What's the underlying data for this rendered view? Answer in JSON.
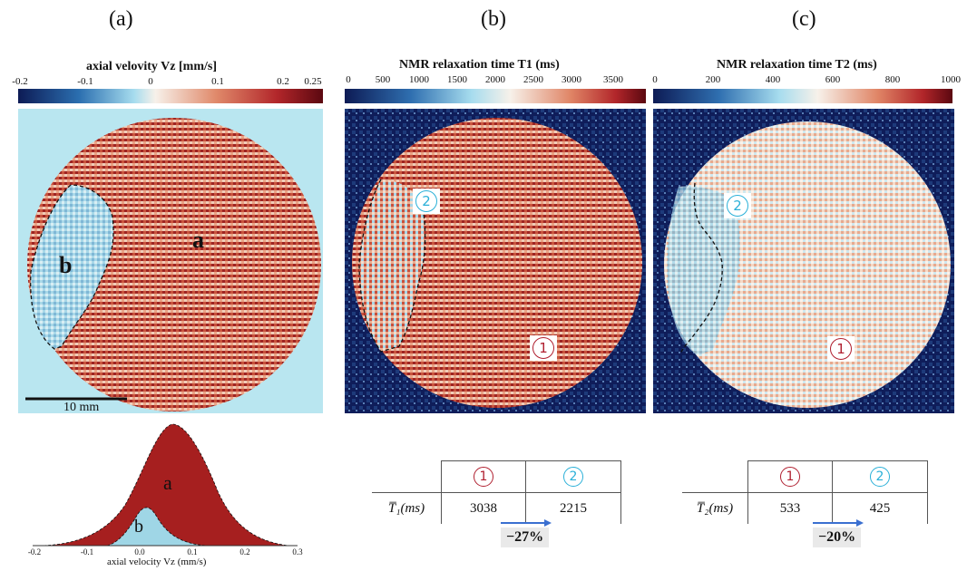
{
  "panels": {
    "a": {
      "label": "(a)",
      "colorbar_title": "axial velovity Vz [mm/s]",
      "colorbar_ticks": [
        "-0.2",
        "-0.1",
        "0",
        "0.1",
        "0.2",
        "0.25"
      ],
      "region_a": "a",
      "region_b": "b",
      "scale_bar": "10 mm"
    },
    "b": {
      "label": "(b)",
      "colorbar_title": "NMR relaxation time T1 (ms)",
      "colorbar_ticks": [
        "0",
        "500",
        "1000",
        "1500",
        "2000",
        "2500",
        "3000",
        "3500"
      ],
      "marker_1": "1",
      "marker_2": "2"
    },
    "c": {
      "label": "(c)",
      "colorbar_title": "NMR relaxation time T2 (ms)",
      "colorbar_ticks": [
        "0",
        "200",
        "400",
        "600",
        "800",
        "1000"
      ],
      "marker_1": "1",
      "marker_2": "2"
    }
  },
  "histogram": {
    "xlabel": "axial velocity Vz (mm/s)",
    "ticks": [
      "-0.2",
      "-0.1",
      "0.0",
      "0.1",
      "0.2",
      "0.3"
    ],
    "label_a": "a",
    "label_b": "b"
  },
  "table_t1": {
    "col1": "1",
    "col2": "2",
    "row_label": "T̅₁(ms)",
    "val1": "3038",
    "val2": "2215",
    "change": "−27%"
  },
  "table_t2": {
    "col1": "1",
    "col2": "2",
    "row_label": "T̅₂(ms)",
    "val1": "533",
    "val2": "425",
    "change": "−20%"
  },
  "colors": {
    "dark_blue": "#0d1b55",
    "light_blue": "#b9e6f0",
    "cream": "#f6e7d8",
    "red": "#b8302a",
    "dark_red": "#6b0a10",
    "marker_red": "#b02030",
    "marker_cyan": "#2ab0d8",
    "arrow_blue": "#3a6fd0"
  }
}
